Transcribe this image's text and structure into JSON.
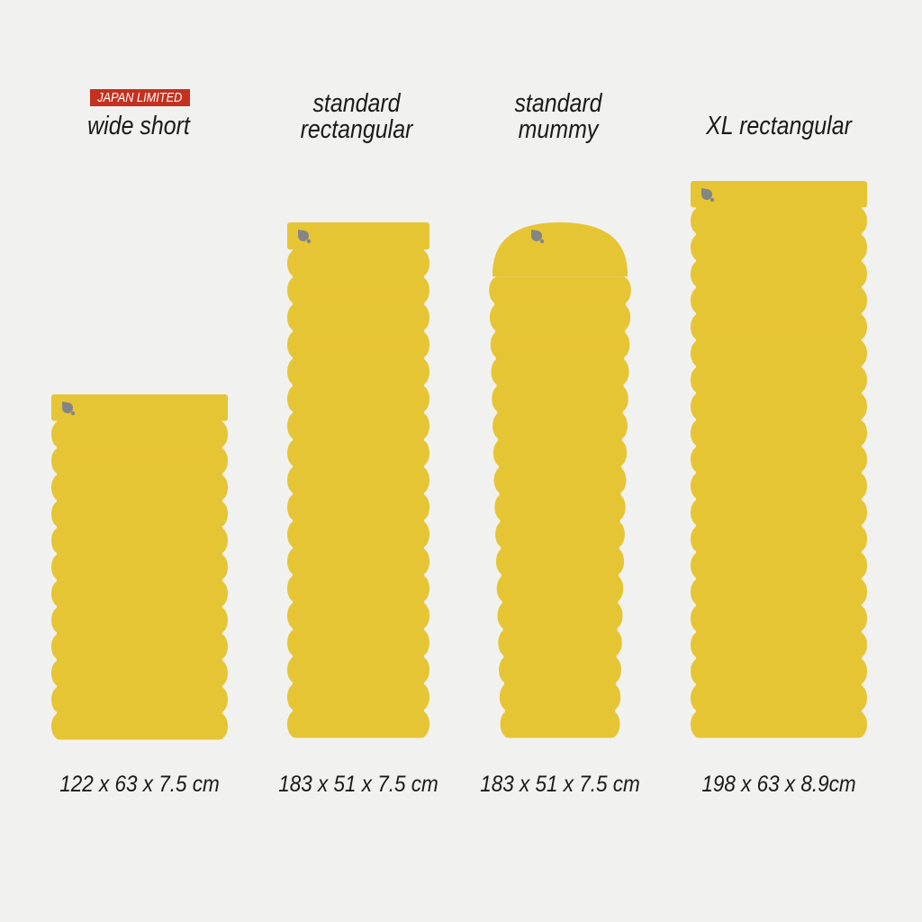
{
  "colors": {
    "pad": "#e6c535",
    "valve": "#858585",
    "badge": "#c4311f",
    "background": "#f1f1ef"
  },
  "pads": [
    {
      "badge": "JAPAN LIMITED",
      "name_lines": [
        "wide short"
      ],
      "dimensions": "122 x 63 x 7.5 cm",
      "shape": "rectangular"
    },
    {
      "name_lines": [
        "standard",
        "rectangular"
      ],
      "dimensions": "183 x 51 x 7.5 cm",
      "shape": "rectangular"
    },
    {
      "name_lines": [
        "standard",
        "mummy"
      ],
      "dimensions": "183 x 51 x 7.5 cm",
      "shape": "mummy"
    },
    {
      "name_lines": [
        "XL rectangular"
      ],
      "dimensions": "198 x 63 x 8.9cm",
      "shape": "rectangular"
    }
  ]
}
